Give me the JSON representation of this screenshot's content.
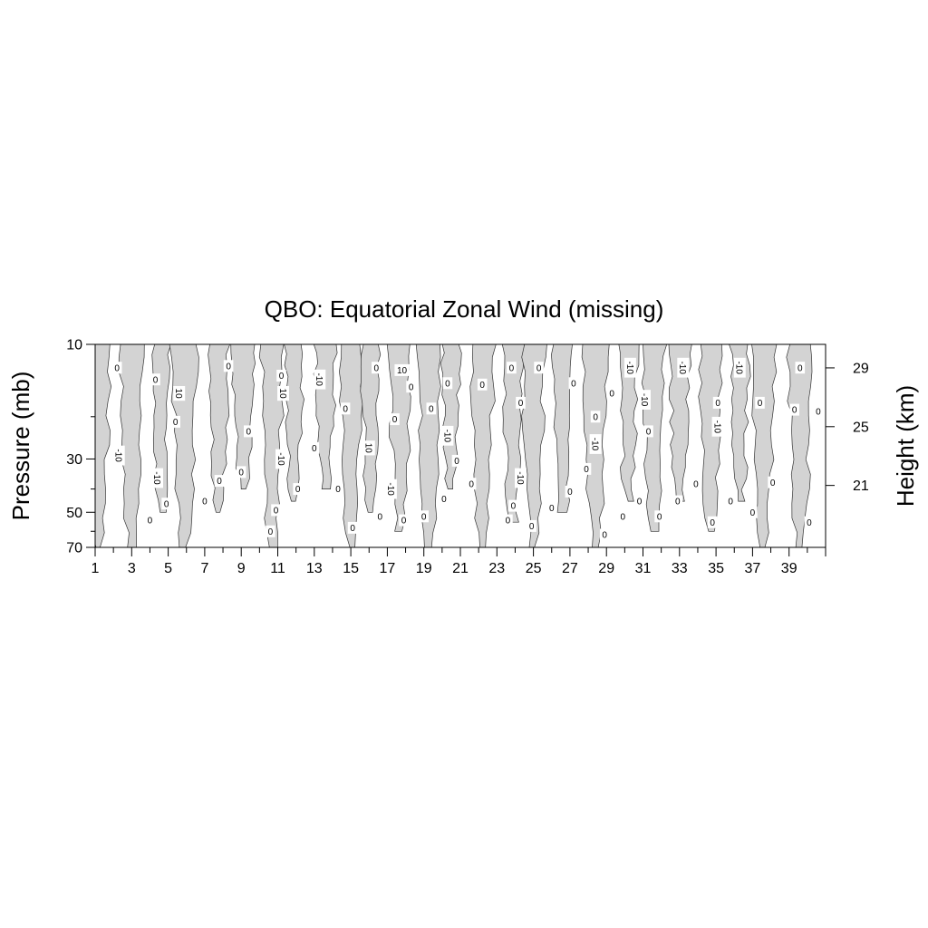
{
  "chart_data": {
    "type": "contour",
    "title": "QBO: Equatorial Zonal Wind (missing)",
    "ylabel_left": "Pressure (mb)",
    "ylabel_right": "Height (km)",
    "xlabel": "",
    "x_ticks": [
      "1",
      "3",
      "5",
      "7",
      "9",
      "11",
      "13",
      "15",
      "17",
      "19",
      "21",
      "23",
      "25",
      "27",
      "29",
      "31",
      "33",
      "35",
      "37",
      "39"
    ],
    "xlim": [
      1,
      41
    ],
    "y_ticks_left": [
      {
        "value": 10,
        "label": "10"
      },
      {
        "value": 30,
        "label": "30"
      },
      {
        "value": 50,
        "label": "50"
      },
      {
        "value": 70,
        "label": "70"
      }
    ],
    "ylim_pressure": [
      70,
      10
    ],
    "y_ticks_right": [
      {
        "value": 29,
        "label": "29"
      },
      {
        "value": 25,
        "label": "25"
      },
      {
        "value": 21,
        "label": "21"
      }
    ],
    "contour_levels": [
      -10,
      0,
      10
    ],
    "shading": "negative values shaded gray",
    "colors": {
      "shade": "#d3d3d3",
      "line": "#333333",
      "frame": "#000000"
    },
    "negative_regions": [
      {
        "x": 1.2,
        "pbot": 70,
        "width": 0.9
      },
      {
        "x": 3.0,
        "pbot": 70,
        "width": 1.0
      },
      {
        "x": 4.6,
        "pbot": 50,
        "width": 0.6
      },
      {
        "x": 5.9,
        "pbot": 70,
        "width": 1.1
      },
      {
        "x": 7.8,
        "pbot": 50,
        "width": 0.7
      },
      {
        "x": 9.1,
        "pbot": 40,
        "width": 0.8
      },
      {
        "x": 10.7,
        "pbot": 70,
        "width": 0.9
      },
      {
        "x": 11.9,
        "pbot": 45,
        "width": 0.7
      },
      {
        "x": 13.6,
        "pbot": 40,
        "width": 0.8
      },
      {
        "x": 15.0,
        "pbot": 70,
        "width": 0.9
      },
      {
        "x": 16.1,
        "pbot": 50,
        "width": 0.7
      },
      {
        "x": 17.7,
        "pbot": 60,
        "width": 0.9
      },
      {
        "x": 19.3,
        "pbot": 70,
        "width": 0.9
      },
      {
        "x": 20.5,
        "pbot": 40,
        "width": 0.7
      },
      {
        "x": 22.2,
        "pbot": 70,
        "width": 1.0
      },
      {
        "x": 23.9,
        "pbot": 55,
        "width": 0.8
      },
      {
        "x": 25.0,
        "pbot": 70,
        "width": 0.9
      },
      {
        "x": 26.6,
        "pbot": 50,
        "width": 0.8
      },
      {
        "x": 28.4,
        "pbot": 70,
        "width": 1.0
      },
      {
        "x": 30.2,
        "pbot": 45,
        "width": 0.7
      },
      {
        "x": 31.6,
        "pbot": 60,
        "width": 0.9
      },
      {
        "x": 33.0,
        "pbot": 45,
        "width": 0.8
      },
      {
        "x": 34.7,
        "pbot": 60,
        "width": 0.9
      },
      {
        "x": 36.3,
        "pbot": 45,
        "width": 0.7
      },
      {
        "x": 37.6,
        "pbot": 70,
        "width": 0.9
      },
      {
        "x": 39.6,
        "pbot": 70,
        "width": 1.0
      }
    ],
    "contour_labels": [
      {
        "x": 2.2,
        "p": 12.5,
        "text": "0"
      },
      {
        "x": 2.3,
        "p": 29,
        "text": "-10"
      },
      {
        "x": 4.0,
        "p": 54,
        "text": "0"
      },
      {
        "x": 4.3,
        "p": 14,
        "text": "0"
      },
      {
        "x": 4.4,
        "p": 36,
        "text": "-10"
      },
      {
        "x": 4.9,
        "p": 46,
        "text": "0"
      },
      {
        "x": 5.6,
        "p": 16,
        "text": "10"
      },
      {
        "x": 5.4,
        "p": 21,
        "text": "0"
      },
      {
        "x": 7.0,
        "p": 45,
        "text": "0"
      },
      {
        "x": 7.8,
        "p": 37,
        "text": "0"
      },
      {
        "x": 8.3,
        "p": 12.3,
        "text": "0"
      },
      {
        "x": 9.0,
        "p": 34,
        "text": "0"
      },
      {
        "x": 9.4,
        "p": 23,
        "text": "0"
      },
      {
        "x": 10.6,
        "p": 60,
        "text": "0"
      },
      {
        "x": 10.9,
        "p": 49,
        "text": "0"
      },
      {
        "x": 11.2,
        "p": 13.5,
        "text": "0"
      },
      {
        "x": 11.3,
        "p": 16,
        "text": "10"
      },
      {
        "x": 11.2,
        "p": 30,
        "text": "-10"
      },
      {
        "x": 12.1,
        "p": 40,
        "text": "0"
      },
      {
        "x": 13.0,
        "p": 27,
        "text": "0"
      },
      {
        "x": 13.3,
        "p": 14,
        "text": "-10"
      },
      {
        "x": 14.3,
        "p": 40,
        "text": "0"
      },
      {
        "x": 14.7,
        "p": 18.5,
        "text": "0"
      },
      {
        "x": 15.1,
        "p": 58,
        "text": "0"
      },
      {
        "x": 16.0,
        "p": 27,
        "text": "10"
      },
      {
        "x": 16.4,
        "p": 12.5,
        "text": "0"
      },
      {
        "x": 16.6,
        "p": 52,
        "text": "0"
      },
      {
        "x": 17.2,
        "p": 40,
        "text": "-10"
      },
      {
        "x": 17.4,
        "p": 20.5,
        "text": "0"
      },
      {
        "x": 17.8,
        "p": 12.8,
        "text": "10"
      },
      {
        "x": 17.9,
        "p": 54,
        "text": "0"
      },
      {
        "x": 18.3,
        "p": 15,
        "text": "0"
      },
      {
        "x": 19.0,
        "p": 52,
        "text": "0"
      },
      {
        "x": 19.4,
        "p": 18.5,
        "text": "0"
      },
      {
        "x": 20.1,
        "p": 44,
        "text": "0"
      },
      {
        "x": 20.3,
        "p": 14.5,
        "text": "0"
      },
      {
        "x": 20.3,
        "p": 24,
        "text": "-10"
      },
      {
        "x": 20.8,
        "p": 30.5,
        "text": "0"
      },
      {
        "x": 21.6,
        "p": 38,
        "text": "0"
      },
      {
        "x": 22.2,
        "p": 14.7,
        "text": "0"
      },
      {
        "x": 23.6,
        "p": 54,
        "text": "0"
      },
      {
        "x": 23.8,
        "p": 12.5,
        "text": "0"
      },
      {
        "x": 23.9,
        "p": 47,
        "text": "0"
      },
      {
        "x": 24.3,
        "p": 17.5,
        "text": "0"
      },
      {
        "x": 24.3,
        "p": 36,
        "text": "-10"
      },
      {
        "x": 24.9,
        "p": 57,
        "text": "0"
      },
      {
        "x": 25.3,
        "p": 12.5,
        "text": "0"
      },
      {
        "x": 26.0,
        "p": 48,
        "text": "0"
      },
      {
        "x": 27.0,
        "p": 41,
        "text": "0"
      },
      {
        "x": 27.2,
        "p": 14.5,
        "text": "0"
      },
      {
        "x": 27.9,
        "p": 33,
        "text": "0"
      },
      {
        "x": 28.4,
        "p": 20,
        "text": "0"
      },
      {
        "x": 28.4,
        "p": 26,
        "text": "-10"
      },
      {
        "x": 28.9,
        "p": 62,
        "text": "0"
      },
      {
        "x": 29.3,
        "p": 16,
        "text": "0"
      },
      {
        "x": 29.9,
        "p": 52,
        "text": "0"
      },
      {
        "x": 30.3,
        "p": 12.5,
        "text": "-10"
      },
      {
        "x": 30.8,
        "p": 45,
        "text": "0"
      },
      {
        "x": 31.1,
        "p": 17,
        "text": "-10"
      },
      {
        "x": 31.3,
        "p": 23,
        "text": "0"
      },
      {
        "x": 31.9,
        "p": 52,
        "text": "0"
      },
      {
        "x": 32.9,
        "p": 45,
        "text": "0"
      },
      {
        "x": 33.2,
        "p": 12.5,
        "text": "-10"
      },
      {
        "x": 33.9,
        "p": 38,
        "text": "0"
      },
      {
        "x": 34.8,
        "p": 55,
        "text": "0"
      },
      {
        "x": 35.1,
        "p": 17.5,
        "text": "0"
      },
      {
        "x": 35.1,
        "p": 22,
        "text": "-10"
      },
      {
        "x": 35.8,
        "p": 45,
        "text": "0"
      },
      {
        "x": 36.3,
        "p": 12.5,
        "text": "-10"
      },
      {
        "x": 37.0,
        "p": 50,
        "text": "0"
      },
      {
        "x": 37.4,
        "p": 17.5,
        "text": "0"
      },
      {
        "x": 38.1,
        "p": 37.5,
        "text": "0"
      },
      {
        "x": 39.3,
        "p": 18.7,
        "text": "0"
      },
      {
        "x": 39.6,
        "p": 12.5,
        "text": "0"
      },
      {
        "x": 40.1,
        "p": 55,
        "text": "0"
      },
      {
        "x": 40.6,
        "p": 19,
        "text": "0"
      }
    ]
  }
}
